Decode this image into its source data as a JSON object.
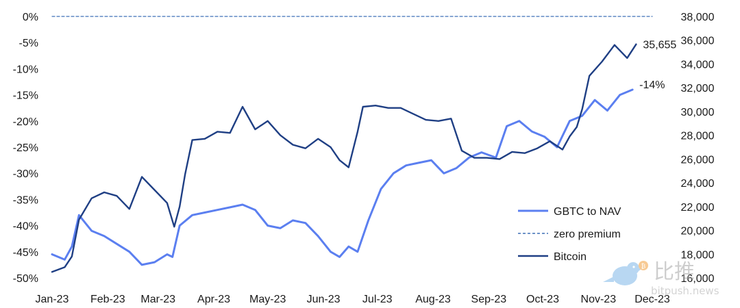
{
  "chart_data": {
    "type": "line",
    "left_axis": {
      "ticks": [
        "0%",
        "-5%",
        "-10%",
        "-15%",
        "-20%",
        "-25%",
        "-30%",
        "-35%",
        "-40%",
        "-45%",
        "-50%"
      ],
      "range": [
        -50,
        0
      ]
    },
    "right_axis": {
      "ticks": [
        "38,000",
        "36,000",
        "34,000",
        "32,000",
        "30,000",
        "28,000",
        "26,000",
        "24,000",
        "22,000",
        "20,000",
        "18,000",
        "16,000"
      ],
      "range": [
        16000,
        38000
      ]
    },
    "x_ticks": [
      "Jan-23",
      "Feb-23",
      "Mar-23",
      "Apr-23",
      "May-23",
      "Jun-23",
      "Jul-23",
      "Aug-23",
      "Sep-23",
      "Oct-23",
      "Nov-23",
      "Dec-23"
    ],
    "series": [
      {
        "name": "GBTC to NAV",
        "axis": "left",
        "color": "#5b7ff0",
        "x": [
          "2023-01-01",
          "2023-01-08",
          "2023-01-12",
          "2023-01-16",
          "2023-01-23",
          "2023-01-30",
          "2023-02-06",
          "2023-02-13",
          "2023-02-20",
          "2023-02-27",
          "2023-03-06",
          "2023-03-09",
          "2023-03-13",
          "2023-03-20",
          "2023-03-27",
          "2023-04-03",
          "2023-04-10",
          "2023-04-17",
          "2023-04-24",
          "2023-05-01",
          "2023-05-08",
          "2023-05-15",
          "2023-05-22",
          "2023-05-29",
          "2023-06-05",
          "2023-06-10",
          "2023-06-15",
          "2023-06-20",
          "2023-06-26",
          "2023-07-03",
          "2023-07-10",
          "2023-07-17",
          "2023-07-24",
          "2023-07-31",
          "2023-08-07",
          "2023-08-14",
          "2023-08-21",
          "2023-08-28",
          "2023-09-01",
          "2023-09-05",
          "2023-09-11",
          "2023-09-18",
          "2023-09-25",
          "2023-10-02",
          "2023-10-09",
          "2023-10-16",
          "2023-10-23",
          "2023-10-30",
          "2023-11-06",
          "2023-11-13",
          "2023-11-20"
        ],
        "y": [
          -45.5,
          -46.5,
          -44,
          -38,
          -41,
          -42,
          -43.5,
          -45,
          -47.5,
          -47,
          -45.5,
          -46,
          -40,
          -38,
          -37.5,
          -37,
          -36.5,
          -36,
          -37,
          -40,
          -40.5,
          -39,
          -39.5,
          -42,
          -45,
          -46,
          -44,
          -45,
          -39,
          -33,
          -30,
          -28.5,
          -28,
          -27.5,
          -30,
          -29,
          -27,
          -26,
          -26.5,
          -27,
          -21,
          -20,
          -22,
          -23,
          -25,
          -20,
          -19,
          -16,
          -18,
          -15,
          -14
        ]
      },
      {
        "name": "zero premium",
        "axis": "left",
        "color": "#3d6fb6",
        "x": [
          "2023-01-01",
          "2023-12-01"
        ],
        "y": [
          0,
          0
        ]
      },
      {
        "name": "Bitcoin",
        "axis": "right",
        "color": "#1f3f84",
        "x": [
          "2023-01-01",
          "2023-01-08",
          "2023-01-12",
          "2023-01-16",
          "2023-01-23",
          "2023-01-30",
          "2023-02-06",
          "2023-02-13",
          "2023-02-20",
          "2023-02-27",
          "2023-03-06",
          "2023-03-10",
          "2023-03-13",
          "2023-03-16",
          "2023-03-20",
          "2023-03-27",
          "2023-04-03",
          "2023-04-10",
          "2023-04-17",
          "2023-04-24",
          "2023-05-01",
          "2023-05-08",
          "2023-05-15",
          "2023-05-22",
          "2023-05-29",
          "2023-06-05",
          "2023-06-10",
          "2023-06-15",
          "2023-06-20",
          "2023-06-23",
          "2023-06-30",
          "2023-07-07",
          "2023-07-14",
          "2023-07-21",
          "2023-07-28",
          "2023-08-04",
          "2023-08-11",
          "2023-08-17",
          "2023-08-24",
          "2023-08-31",
          "2023-09-07",
          "2023-09-14",
          "2023-09-21",
          "2023-09-28",
          "2023-10-05",
          "2023-10-12",
          "2023-10-16",
          "2023-10-20",
          "2023-10-23",
          "2023-10-27",
          "2023-11-03",
          "2023-11-10",
          "2023-11-17",
          "2023-11-22"
        ],
        "y": [
          16500,
          16900,
          17800,
          20900,
          22700,
          23200,
          22900,
          21800,
          24500,
          23400,
          22300,
          20300,
          22000,
          24700,
          27600,
          27700,
          28300,
          28200,
          30400,
          28500,
          29200,
          28000,
          27200,
          26900,
          27700,
          27000,
          25900,
          25300,
          28300,
          30400,
          30500,
          30300,
          30300,
          29800,
          29300,
          29200,
          29400,
          26700,
          26100,
          26100,
          26000,
          26600,
          26500,
          26900,
          27500,
          26800,
          27900,
          28700,
          30200,
          33000,
          34200,
          35600,
          34500,
          35655
        ]
      }
    ],
    "annotations": [
      {
        "text": "35,655",
        "series": "Bitcoin"
      },
      {
        "text": "-14%",
        "series": "GBTC to NAV"
      }
    ],
    "legend": {
      "placement": "bottom-right"
    },
    "grid": false,
    "watermark": {
      "glyphs": "比推",
      "url": "bitpush.news",
      "icon": "bird-coin-logo-icon"
    }
  }
}
